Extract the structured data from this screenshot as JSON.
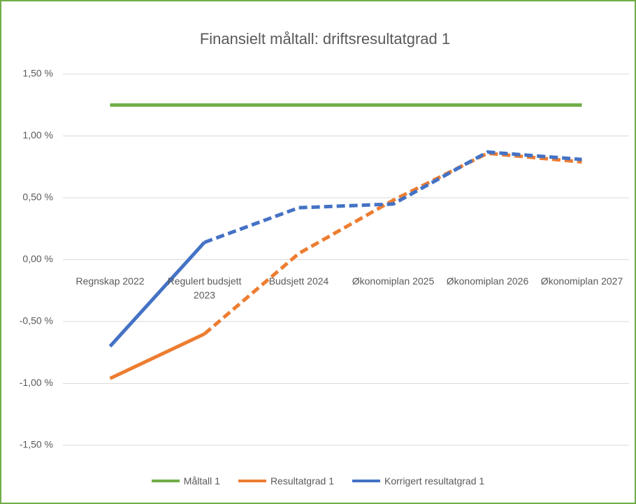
{
  "chart_data": {
    "type": "line",
    "title": "Finansielt måltall: driftsresultatgrad 1",
    "categories": [
      "Regnskap 2022",
      "Regulert budsjett 2023",
      "Budsjett 2024",
      "Økonomiplan 2025",
      "Økonomiplan 2026",
      "Økonomiplan 2027"
    ],
    "series": [
      {
        "name": "Måltall 1",
        "color": "#70ad47",
        "values": [
          1.25,
          1.25,
          1.25,
          1.25,
          1.25,
          1.25
        ]
      },
      {
        "name": "Resultatgrad 1",
        "color": "#ed7d31",
        "dashed_from": 1,
        "values": [
          -0.96,
          -0.6,
          0.05,
          0.48,
          0.86,
          0.79
        ]
      },
      {
        "name": "Korrigert resultatgrad 1",
        "color": "#4472c4",
        "dashed_from": 1,
        "values": [
          -0.7,
          0.14,
          0.42,
          0.45,
          0.87,
          0.81
        ]
      }
    ],
    "ylim": [
      -1.5,
      1.5
    ],
    "yticks": [
      {
        "value": 1.5,
        "label": "1,50 %"
      },
      {
        "value": 1.0,
        "label": "1,00 %"
      },
      {
        "value": 0.5,
        "label": "0,50 %"
      },
      {
        "value": 0.0,
        "label": "0,00 %"
      },
      {
        "value": -0.5,
        "label": "-0,50 %"
      },
      {
        "value": -1.0,
        "label": "-1,00 %"
      },
      {
        "value": -1.5,
        "label": "-1,50 %"
      }
    ],
    "grid": true,
    "legend": "bottom"
  }
}
